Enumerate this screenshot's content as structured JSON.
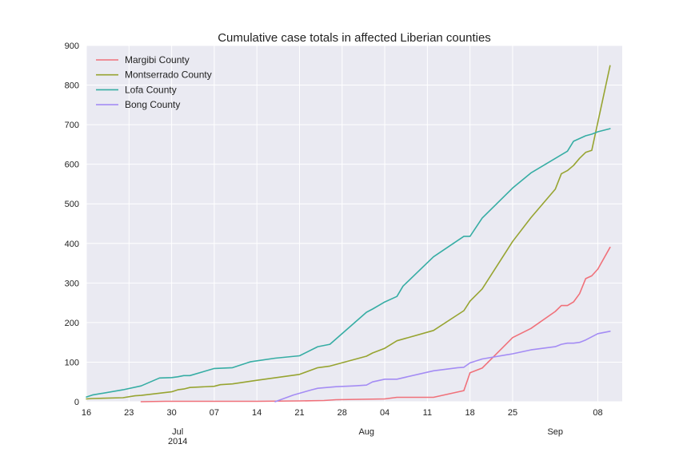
{
  "chart_data": {
    "type": "line",
    "title": "Cumulative case totals in affected Liberian counties",
    "xlabel": "",
    "ylabel": "",
    "ylim": [
      0,
      900
    ],
    "yticks": [
      0,
      100,
      200,
      300,
      400,
      500,
      600,
      700,
      800,
      900
    ],
    "xlim": [
      "2014-06-16",
      "2014-09-12"
    ],
    "xticks": [
      {
        "date": "2014-06-16",
        "label": "16",
        "sublabel": ""
      },
      {
        "date": "2014-06-23",
        "label": "23",
        "sublabel": ""
      },
      {
        "date": "2014-06-30",
        "label": "30",
        "sublabel": ""
      },
      {
        "date": "2014-07-01",
        "label": "",
        "sublabel": "Jul\n2014"
      },
      {
        "date": "2014-07-07",
        "label": "07",
        "sublabel": ""
      },
      {
        "date": "2014-07-14",
        "label": "14",
        "sublabel": ""
      },
      {
        "date": "2014-07-21",
        "label": "21",
        "sublabel": ""
      },
      {
        "date": "2014-07-28",
        "label": "28",
        "sublabel": ""
      },
      {
        "date": "2014-08-01",
        "label": "",
        "sublabel": "Aug"
      },
      {
        "date": "2014-08-04",
        "label": "04",
        "sublabel": ""
      },
      {
        "date": "2014-08-11",
        "label": "11",
        "sublabel": ""
      },
      {
        "date": "2014-08-18",
        "label": "18",
        "sublabel": ""
      },
      {
        "date": "2014-08-25",
        "label": "25",
        "sublabel": ""
      },
      {
        "date": "2014-09-01",
        "label": "",
        "sublabel": "Sep"
      },
      {
        "date": "2014-09-08",
        "label": "08",
        "sublabel": ""
      }
    ],
    "grid": true,
    "legend_position": "top-left",
    "series": [
      {
        "name": "Margibi County",
        "color": "#f0717a",
        "points": [
          [
            "2014-06-25",
            0
          ],
          [
            "2014-06-29",
            1
          ],
          [
            "2014-07-14",
            1
          ],
          [
            "2014-07-21",
            2
          ],
          [
            "2014-07-25",
            3
          ],
          [
            "2014-07-27",
            5
          ],
          [
            "2014-08-04",
            7
          ],
          [
            "2014-08-06",
            11
          ],
          [
            "2014-08-12",
            11
          ],
          [
            "2014-08-17",
            28
          ],
          [
            "2014-08-18",
            73
          ],
          [
            "2014-08-20",
            85
          ],
          [
            "2014-08-25",
            162
          ],
          [
            "2014-08-28",
            185
          ],
          [
            "2014-09-01",
            228
          ],
          [
            "2014-09-02",
            243
          ],
          [
            "2014-09-03",
            243
          ],
          [
            "2014-09-04",
            252
          ],
          [
            "2014-09-05",
            273
          ],
          [
            "2014-09-06",
            311
          ],
          [
            "2014-09-07",
            318
          ],
          [
            "2014-09-08",
            335
          ],
          [
            "2014-09-10",
            390
          ]
        ]
      },
      {
        "name": "Montserrado County",
        "color": "#97a431",
        "points": [
          [
            "2014-06-16",
            7
          ],
          [
            "2014-06-17",
            8
          ],
          [
            "2014-06-22",
            10
          ],
          [
            "2014-06-24",
            15
          ],
          [
            "2014-06-25",
            16
          ],
          [
            "2014-06-30",
            25
          ],
          [
            "2014-07-01",
            30
          ],
          [
            "2014-07-02",
            32
          ],
          [
            "2014-07-03",
            36
          ],
          [
            "2014-07-07",
            39
          ],
          [
            "2014-07-08",
            43
          ],
          [
            "2014-07-10",
            45
          ],
          [
            "2014-07-14",
            54
          ],
          [
            "2014-07-21",
            69
          ],
          [
            "2014-07-24",
            86
          ],
          [
            "2014-07-26",
            90
          ],
          [
            "2014-08-01",
            115
          ],
          [
            "2014-08-02",
            123
          ],
          [
            "2014-08-04",
            135
          ],
          [
            "2014-08-06",
            154
          ],
          [
            "2014-08-12",
            180
          ],
          [
            "2014-08-17",
            230
          ],
          [
            "2014-08-18",
            254
          ],
          [
            "2014-08-20",
            285
          ],
          [
            "2014-08-25",
            405
          ],
          [
            "2014-08-28",
            465
          ],
          [
            "2014-09-01",
            537
          ],
          [
            "2014-09-02",
            576
          ],
          [
            "2014-09-03",
            584
          ],
          [
            "2014-09-04",
            597
          ],
          [
            "2014-09-05",
            615
          ],
          [
            "2014-09-06",
            630
          ],
          [
            "2014-09-07",
            635
          ],
          [
            "2014-09-10",
            849
          ]
        ]
      },
      {
        "name": "Lofa County",
        "color": "#36ada4",
        "points": [
          [
            "2014-06-16",
            12
          ],
          [
            "2014-06-17",
            17
          ],
          [
            "2014-06-22",
            30
          ],
          [
            "2014-06-25",
            40
          ],
          [
            "2014-06-28",
            60
          ],
          [
            "2014-06-30",
            61
          ],
          [
            "2014-07-01",
            63
          ],
          [
            "2014-07-02",
            66
          ],
          [
            "2014-07-03",
            66
          ],
          [
            "2014-07-07",
            84
          ],
          [
            "2014-07-10",
            86
          ],
          [
            "2014-07-13",
            101
          ],
          [
            "2014-07-17",
            110
          ],
          [
            "2014-07-21",
            116
          ],
          [
            "2014-07-24",
            139
          ],
          [
            "2014-07-26",
            145
          ],
          [
            "2014-08-01",
            226
          ],
          [
            "2014-08-02",
            234
          ],
          [
            "2014-08-04",
            252
          ],
          [
            "2014-08-06",
            266
          ],
          [
            "2014-08-07",
            292
          ],
          [
            "2014-08-12",
            366
          ],
          [
            "2014-08-17",
            418
          ],
          [
            "2014-08-18",
            418
          ],
          [
            "2014-08-20",
            464
          ],
          [
            "2014-08-25",
            540
          ],
          [
            "2014-08-28",
            578
          ],
          [
            "2014-09-02",
            624
          ],
          [
            "2014-09-03",
            633
          ],
          [
            "2014-09-04",
            658
          ],
          [
            "2014-09-06",
            672
          ],
          [
            "2014-09-07",
            676
          ],
          [
            "2014-09-08",
            682
          ],
          [
            "2014-09-10",
            690
          ]
        ]
      },
      {
        "name": "Bong County",
        "color": "#a48cf4",
        "points": [
          [
            "2014-07-17",
            0
          ],
          [
            "2014-07-20",
            17
          ],
          [
            "2014-07-23",
            30
          ],
          [
            "2014-07-24",
            34
          ],
          [
            "2014-07-27",
            38
          ],
          [
            "2014-07-30",
            40
          ],
          [
            "2014-08-01",
            42
          ],
          [
            "2014-08-02",
            50
          ],
          [
            "2014-08-04",
            57
          ],
          [
            "2014-08-06",
            57
          ],
          [
            "2014-08-12",
            78
          ],
          [
            "2014-08-16",
            86
          ],
          [
            "2014-08-17",
            87
          ],
          [
            "2014-08-18",
            98
          ],
          [
            "2014-08-20",
            108
          ],
          [
            "2014-08-25",
            121
          ],
          [
            "2014-08-28",
            131
          ],
          [
            "2014-09-01",
            139
          ],
          [
            "2014-09-02",
            145
          ],
          [
            "2014-09-03",
            148
          ],
          [
            "2014-09-04",
            148
          ],
          [
            "2014-09-05",
            150
          ],
          [
            "2014-09-06",
            156
          ],
          [
            "2014-09-08",
            172
          ],
          [
            "2014-09-10",
            178
          ]
        ]
      }
    ]
  }
}
